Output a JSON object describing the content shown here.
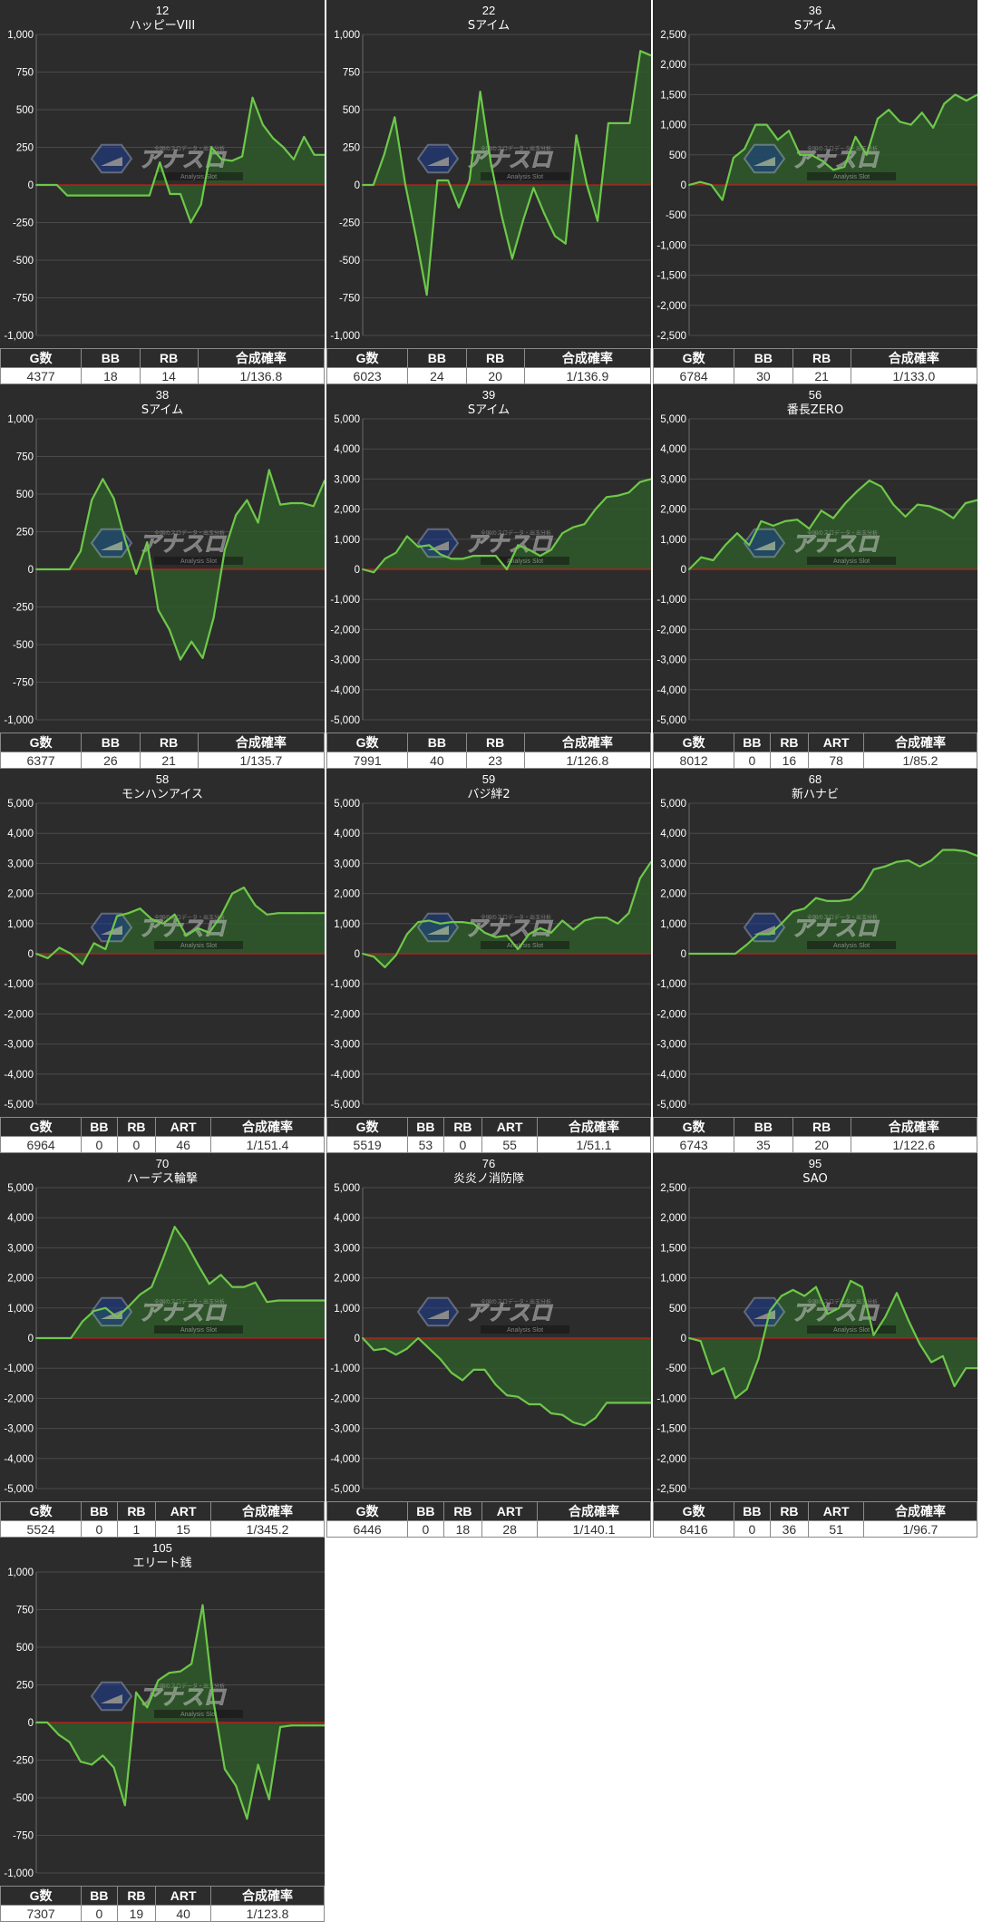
{
  "colors": {
    "plot_background": "#2c2c2c",
    "gridline": "#4a4a4a",
    "line": "#6ec84a",
    "fill": "#2f5a2a",
    "zero_line": "#cc1a1a",
    "axis_text": "#ffffff",
    "table_header": "#2c2c2c"
  },
  "watermark": {
    "logo_text": "アナスロ",
    "tagline": "Analysis Slot",
    "top_text": "全国のスロデータ・出玉分析"
  },
  "machines": [
    {
      "number": "12",
      "name": "ハッピーVIII",
      "stats": {
        "headers": [
          "G数",
          "BB",
          "RB",
          "合成確率"
        ],
        "values": [
          "4377",
          "18",
          "14",
          "1/136.8"
        ]
      }
    },
    {
      "number": "22",
      "name": "Sアイム",
      "stats": {
        "headers": [
          "G数",
          "BB",
          "RB",
          "合成確率"
        ],
        "values": [
          "6023",
          "24",
          "20",
          "1/136.9"
        ]
      }
    },
    {
      "number": "36",
      "name": "Sアイム",
      "stats": {
        "headers": [
          "G数",
          "BB",
          "RB",
          "合成確率"
        ],
        "values": [
          "6784",
          "30",
          "21",
          "1/133.0"
        ]
      }
    },
    {
      "number": "38",
      "name": "Sアイム",
      "stats": {
        "headers": [
          "G数",
          "BB",
          "RB",
          "合成確率"
        ],
        "values": [
          "6377",
          "26",
          "21",
          "1/135.7"
        ]
      }
    },
    {
      "number": "39",
      "name": "Sアイム",
      "stats": {
        "headers": [
          "G数",
          "BB",
          "RB",
          "合成確率"
        ],
        "values": [
          "7991",
          "40",
          "23",
          "1/126.8"
        ]
      }
    },
    {
      "number": "56",
      "name": "番長ZERO",
      "stats": {
        "headers": [
          "G数",
          "BB",
          "RB",
          "ART",
          "合成確率"
        ],
        "values": [
          "8012",
          "0",
          "16",
          "78",
          "1/85.2"
        ]
      }
    },
    {
      "number": "58",
      "name": "モンハンアイス",
      "stats": {
        "headers": [
          "G数",
          "BB",
          "RB",
          "ART",
          "合成確率"
        ],
        "values": [
          "6964",
          "0",
          "0",
          "46",
          "1/151.4"
        ]
      }
    },
    {
      "number": "59",
      "name": "バジ絆2",
      "stats": {
        "headers": [
          "G数",
          "BB",
          "RB",
          "ART",
          "合成確率"
        ],
        "values": [
          "5519",
          "53",
          "0",
          "55",
          "1/51.1"
        ]
      }
    },
    {
      "number": "68",
      "name": "新ハナビ",
      "stats": {
        "headers": [
          "G数",
          "BB",
          "RB",
          "合成確率"
        ],
        "values": [
          "6743",
          "35",
          "20",
          "1/122.6"
        ]
      }
    },
    {
      "number": "70",
      "name": "ハーデス輪撃",
      "stats": {
        "headers": [
          "G数",
          "BB",
          "RB",
          "ART",
          "合成確率"
        ],
        "values": [
          "5524",
          "0",
          "1",
          "15",
          "1/345.2"
        ]
      }
    },
    {
      "number": "76",
      "name": "炎炎ノ消防隊",
      "stats": {
        "headers": [
          "G数",
          "BB",
          "RB",
          "ART",
          "合成確率"
        ],
        "values": [
          "6446",
          "0",
          "18",
          "28",
          "1/140.1"
        ]
      }
    },
    {
      "number": "95",
      "name": "SAO",
      "stats": {
        "headers": [
          "G数",
          "BB",
          "RB",
          "ART",
          "合成確率"
        ],
        "values": [
          "8416",
          "0",
          "36",
          "51",
          "1/96.7"
        ]
      }
    },
    {
      "number": "105",
      "name": "エリート銭",
      "stats": {
        "headers": [
          "G数",
          "BB",
          "RB",
          "ART",
          "合成確率"
        ],
        "values": [
          "7307",
          "0",
          "19",
          "40",
          "1/123.8"
        ]
      }
    }
  ],
  "chart_data": [
    {
      "type": "area",
      "title": "12 ハッピーVIII",
      "ylim": [
        -1000,
        1000
      ],
      "yticks": [
        "1,000",
        "750",
        "500",
        "250",
        "0",
        "-250",
        "-500",
        "-750",
        "-1,000"
      ],
      "values": [
        0,
        0,
        0,
        -70,
        -70,
        -70,
        -70,
        -70,
        -70,
        -70,
        -70,
        -70,
        150,
        -60,
        -60,
        -250,
        -130,
        250,
        170,
        160,
        190,
        580,
        400,
        310,
        250,
        170,
        320,
        200,
        200
      ]
    },
    {
      "type": "area",
      "title": "22 Sアイム",
      "ylim": [
        -1000,
        1000
      ],
      "yticks": [
        "1,000",
        "750",
        "500",
        "250",
        "0",
        "-250",
        "-500",
        "-750",
        "-1,000"
      ],
      "values": [
        0,
        0,
        200,
        450,
        0,
        -350,
        -730,
        30,
        30,
        -150,
        30,
        620,
        150,
        -200,
        -490,
        -240,
        -20,
        -190,
        -340,
        -390,
        330,
        0,
        -240,
        410,
        410,
        410,
        890,
        860
      ]
    },
    {
      "type": "area",
      "title": "36 Sアイム",
      "ylim": [
        -2500,
        2500
      ],
      "yticks": [
        "2,500",
        "2,000",
        "1,500",
        "1,000",
        "500",
        "0",
        "-500",
        "-1,000",
        "-1,500",
        "-2,000",
        "-2,500"
      ],
      "values": [
        0,
        50,
        0,
        -250,
        450,
        600,
        1000,
        1000,
        750,
        900,
        500,
        500,
        400,
        250,
        300,
        800,
        500,
        1100,
        1250,
        1050,
        1000,
        1200,
        950,
        1350,
        1500,
        1400,
        1500
      ]
    },
    {
      "type": "area",
      "title": "38 Sアイム",
      "ylim": [
        -1000,
        1000
      ],
      "yticks": [
        "1,000",
        "750",
        "500",
        "250",
        "0",
        "-250",
        "-500",
        "-750",
        "-1,000"
      ],
      "values": [
        0,
        0,
        0,
        0,
        120,
        460,
        600,
        470,
        200,
        -30,
        180,
        -270,
        -400,
        -600,
        -480,
        -590,
        -320,
        130,
        360,
        460,
        310,
        660,
        430,
        440,
        440,
        420,
        590
      ]
    },
    {
      "type": "area",
      "title": "39 Sアイム",
      "ylim": [
        -5000,
        5000
      ],
      "yticks": [
        "5,000",
        "4,000",
        "3,000",
        "2,000",
        "1,000",
        "0",
        "-1,000",
        "-2,000",
        "-3,000",
        "-4,000",
        "-5,000"
      ],
      "values": [
        0,
        -100,
        350,
        550,
        1100,
        750,
        800,
        500,
        350,
        350,
        450,
        450,
        450,
        0,
        800,
        650,
        450,
        650,
        1200,
        1400,
        1500,
        2000,
        2400,
        2450,
        2550,
        2900,
        3000
      ]
    },
    {
      "type": "area",
      "title": "56 番長ZERO",
      "ylim": [
        -5000,
        5000
      ],
      "yticks": [
        "5,000",
        "4,000",
        "3,000",
        "2,000",
        "1,000",
        "0",
        "-1,000",
        "-2,000",
        "-3,000",
        "-4,000",
        "-5,000"
      ],
      "values": [
        0,
        400,
        300,
        800,
        1200,
        800,
        1600,
        1450,
        1600,
        1650,
        1350,
        1950,
        1700,
        2200,
        2600,
        2950,
        2750,
        2150,
        1750,
        2150,
        2100,
        1950,
        1700,
        2200,
        2300
      ]
    },
    {
      "type": "area",
      "title": "58 モンハンアイス",
      "ylim": [
        -5000,
        5000
      ],
      "yticks": [
        "5,000",
        "4,000",
        "3,000",
        "2,000",
        "1,000",
        "0",
        "-1,000",
        "-2,000",
        "-3,000",
        "-4,000",
        "-5,000"
      ],
      "values": [
        0,
        -150,
        200,
        0,
        -350,
        350,
        150,
        1250,
        1350,
        1500,
        1150,
        1000,
        1300,
        600,
        850,
        700,
        1250,
        2000,
        2200,
        1600,
        1300,
        1350,
        1350,
        1350,
        1350,
        1350
      ]
    },
    {
      "type": "area",
      "title": "59 バジ絆2",
      "ylim": [
        -5000,
        5000
      ],
      "yticks": [
        "5,000",
        "4,000",
        "3,000",
        "2,000",
        "1,000",
        "0",
        "-1,000",
        "-2,000",
        "-3,000",
        "-4,000",
        "-5,000"
      ],
      "values": [
        0,
        -100,
        -450,
        -50,
        650,
        1050,
        1100,
        1000,
        1050,
        1050,
        1000,
        700,
        550,
        600,
        150,
        650,
        850,
        700,
        1100,
        800,
        1100,
        1200,
        1200,
        1000,
        1350,
        2500,
        3050
      ]
    },
    {
      "type": "area",
      "title": "68 新ハナビ",
      "ylim": [
        -5000,
        5000
      ],
      "yticks": [
        "5,000",
        "4,000",
        "3,000",
        "2,000",
        "1,000",
        "0",
        "-1,000",
        "-2,000",
        "-3,000",
        "-4,000",
        "-5,000"
      ],
      "values": [
        0,
        0,
        0,
        0,
        0,
        300,
        650,
        650,
        1000,
        1400,
        1500,
        1850,
        1750,
        1750,
        1800,
        2150,
        2800,
        2900,
        3050,
        3100,
        2900,
        3100,
        3450,
        3450,
        3400,
        3250
      ]
    },
    {
      "type": "area",
      "title": "70 ハーデス輪撃",
      "ylim": [
        -5000,
        5000
      ],
      "yticks": [
        "5,000",
        "4,000",
        "3,000",
        "2,000",
        "1,000",
        "0",
        "-1,000",
        "-2,000",
        "-3,000",
        "-4,000",
        "-5,000"
      ],
      "values": [
        0,
        0,
        0,
        0,
        550,
        900,
        1000,
        700,
        1050,
        1450,
        1700,
        2650,
        3700,
        3150,
        2450,
        1800,
        2100,
        1700,
        1700,
        1850,
        1200,
        1250,
        1250,
        1250,
        1250,
        1250
      ]
    },
    {
      "type": "area",
      "title": "76 炎炎ノ消防隊",
      "ylim": [
        -5000,
        5000
      ],
      "yticks": [
        "5,000",
        "4,000",
        "3,000",
        "2,000",
        "1,000",
        "0",
        "-1,000",
        "-2,000",
        "-3,000",
        "-4,000",
        "-5,000"
      ],
      "values": [
        0,
        -400,
        -350,
        -550,
        -350,
        0,
        -350,
        -700,
        -1150,
        -1400,
        -1050,
        -1050,
        -1550,
        -1900,
        -1950,
        -2200,
        -2200,
        -2500,
        -2550,
        -2800,
        -2900,
        -2650,
        -2150,
        -2150,
        -2150,
        -2150,
        -2150
      ]
    },
    {
      "type": "area",
      "title": "95 SAO",
      "ylim": [
        -2500,
        2500
      ],
      "yticks": [
        "2,500",
        "2,000",
        "1,500",
        "1,000",
        "500",
        "0",
        "-500",
        "-1,000",
        "-1,500",
        "-2,000",
        "-2,500"
      ],
      "values": [
        0,
        -50,
        -600,
        -500,
        -1000,
        -850,
        -350,
        450,
        700,
        800,
        700,
        850,
        400,
        500,
        950,
        850,
        50,
        350,
        750,
        300,
        -100,
        -400,
        -300,
        -800,
        -500,
        -500
      ]
    },
    {
      "type": "area",
      "title": "105 エリート銭",
      "ylim": [
        -1000,
        1000
      ],
      "yticks": [
        "1,000",
        "750",
        "500",
        "250",
        "0",
        "-250",
        "-500",
        "-750",
        "-1,000"
      ],
      "values": [
        0,
        0,
        -80,
        -130,
        -260,
        -280,
        -220,
        -300,
        -550,
        200,
        100,
        280,
        330,
        340,
        390,
        780,
        130,
        -310,
        -420,
        -640,
        -280,
        -510,
        -30,
        -20,
        -20,
        -20,
        -20
      ]
    }
  ]
}
